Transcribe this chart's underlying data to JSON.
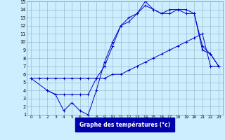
{
  "xlabel": "Graphe des températures (°c)",
  "xlim": [
    -0.5,
    23.5
  ],
  "ylim": [
    1,
    15
  ],
  "yticks": [
    1,
    2,
    3,
    4,
    5,
    6,
    7,
    8,
    9,
    10,
    11,
    12,
    13,
    14,
    15
  ],
  "xticks": [
    0,
    1,
    2,
    3,
    4,
    5,
    6,
    7,
    8,
    9,
    10,
    11,
    12,
    13,
    14,
    15,
    16,
    17,
    18,
    19,
    20,
    21,
    22,
    23
  ],
  "bg_color": "#cceeff",
  "line_color": "#0000cc",
  "grid_color": "#99bbcc",
  "line1_x": [
    0,
    1,
    2,
    3,
    4,
    5,
    6,
    7,
    8,
    9,
    10,
    11,
    12,
    13,
    14,
    15,
    16,
    17,
    18,
    19,
    20,
    21,
    22,
    23
  ],
  "line1_y": [
    5.5,
    5.5,
    5.5,
    5.5,
    5.5,
    5.5,
    5.5,
    5.5,
    5.5,
    5.5,
    6.0,
    6.0,
    6.5,
    7.0,
    7.5,
    8.0,
    8.5,
    9.0,
    9.5,
    10.0,
    10.5,
    11.0,
    7.0,
    7.0
  ],
  "line2_x": [
    0,
    2,
    3,
    4,
    5,
    6,
    7,
    8,
    9,
    10,
    11,
    12,
    13,
    14,
    15,
    16,
    17,
    18,
    19,
    20,
    21,
    22,
    23
  ],
  "line2_y": [
    5.5,
    4.0,
    3.5,
    3.5,
    3.5,
    3.5,
    3.5,
    5.5,
    7.0,
    9.5,
    12.0,
    12.5,
    13.5,
    14.5,
    14.0,
    13.5,
    14.0,
    14.0,
    13.5,
    13.5,
    9.5,
    8.5,
    7.0
  ],
  "line3_x": [
    2,
    3,
    4,
    5,
    6,
    7,
    8,
    9,
    10,
    11,
    12,
    13,
    14,
    15,
    16,
    17,
    18,
    19,
    20,
    21,
    22,
    23
  ],
  "line3_y": [
    4.0,
    3.5,
    1.5,
    2.5,
    1.5,
    1.0,
    4.0,
    7.5,
    10.0,
    12.0,
    13.0,
    13.5,
    15.0,
    14.0,
    13.5,
    13.5,
    14.0,
    14.0,
    13.5,
    9.0,
    8.5,
    7.0
  ]
}
